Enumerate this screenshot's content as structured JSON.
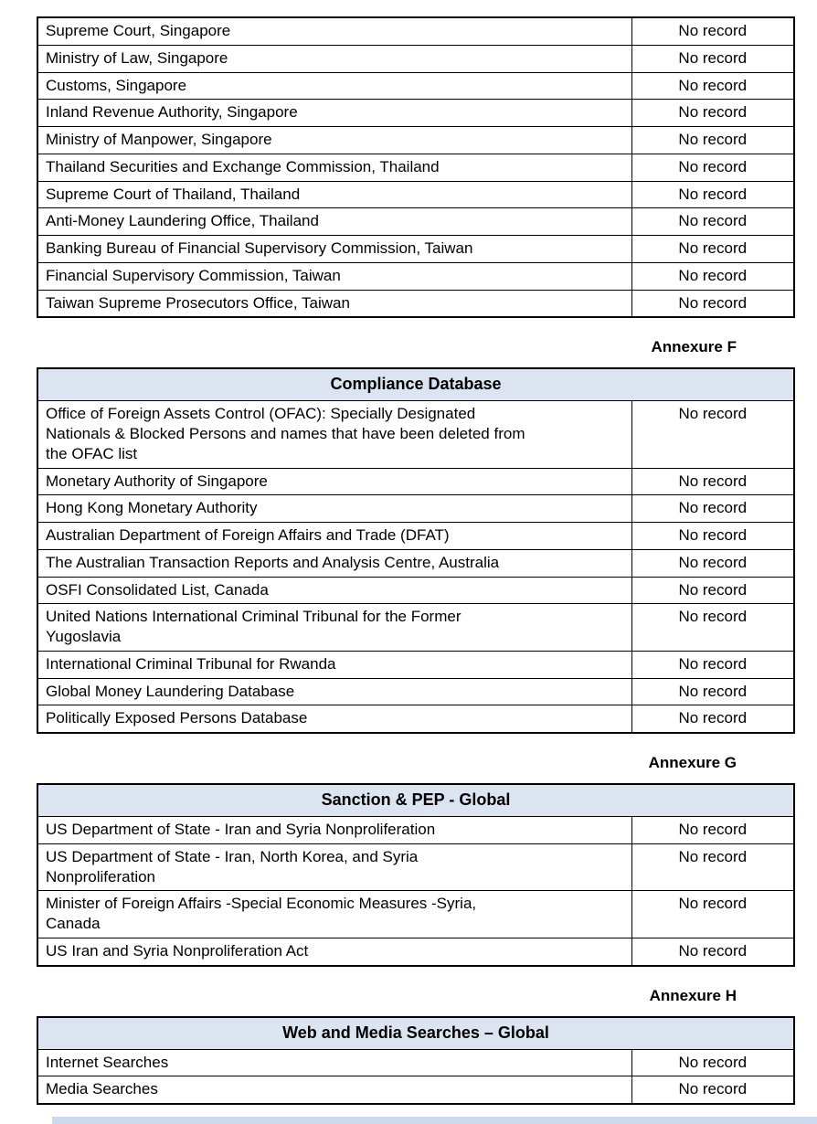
{
  "colors": {
    "header_band": "#dce4f2",
    "table_border": "#000000",
    "next_table_strip": "#ccd9ed"
  },
  "continued_table": {
    "rows": [
      {
        "source": "Supreme Court, Singapore",
        "result": "No record"
      },
      {
        "source": "Ministry of Law, Singapore",
        "result": "No record"
      },
      {
        "source": "Customs, Singapore",
        "result": "No record"
      },
      {
        "source": "Inland Revenue Authority, Singapore",
        "result": "No record"
      },
      {
        "source": "Ministry of Manpower, Singapore",
        "result": "No record"
      },
      {
        "source": "Thailand Securities and Exchange Commission, Thailand",
        "result": "No record"
      },
      {
        "source": "Supreme Court of Thailand, Thailand",
        "result": "No record"
      },
      {
        "source": "Anti-Money Laundering Office, Thailand",
        "result": "No record"
      },
      {
        "source": "Banking Bureau of Financial Supervisory Commission, Taiwan",
        "result": "No record"
      },
      {
        "source": "Financial Supervisory Commission, Taiwan",
        "result": "No record"
      },
      {
        "source": "Taiwan Supreme Prosecutors Office, Taiwan",
        "result": "No record"
      }
    ]
  },
  "annexure_f": {
    "label": "Annexure F",
    "title": "Compliance Database",
    "rows": [
      {
        "source": "Office of Foreign Assets Control (OFAC): Specially Designated\nNationals & Blocked Persons and names that have been deleted from\nthe OFAC list",
        "result": "No record"
      },
      {
        "source": "Monetary Authority of Singapore",
        "result": "No record"
      },
      {
        "source": "Hong Kong Monetary Authority",
        "result": "No record"
      },
      {
        "source": "Australian Department of Foreign Affairs and Trade (DFAT)",
        "result": "No record"
      },
      {
        "source": "The Australian Transaction Reports and Analysis Centre, Australia",
        "result": "No record"
      },
      {
        "source": "OSFI Consolidated List, Canada",
        "result": "No record"
      },
      {
        "source": "United Nations International Criminal Tribunal for the Former\nYugoslavia",
        "result": "No record"
      },
      {
        "source": "International Criminal Tribunal for Rwanda",
        "result": "No record"
      },
      {
        "source": "Global Money Laundering Database",
        "result": "No record"
      },
      {
        "source": "Politically Exposed Persons Database",
        "result": "No record"
      }
    ]
  },
  "annexure_g": {
    "label": "Annexure G",
    "title": "Sanction & PEP - Global",
    "rows": [
      {
        "source": "US Department of State - Iran and Syria Nonproliferation",
        "result": "No record"
      },
      {
        "source": "US Department of State - Iran, North Korea, and Syria\nNonproliferation",
        "result": "No record"
      },
      {
        "source": "Minister of Foreign Affairs -Special Economic Measures -Syria,\nCanada",
        "result": "No record"
      },
      {
        "source": "US Iran and Syria Nonproliferation Act",
        "result": "No record"
      }
    ]
  },
  "annexure_h": {
    "label": "Annexure H",
    "title": "Web and Media Searches – Global",
    "rows": [
      {
        "source": "Internet Searches",
        "result": "No record"
      },
      {
        "source": "Media Searches",
        "result": "No record"
      }
    ]
  }
}
